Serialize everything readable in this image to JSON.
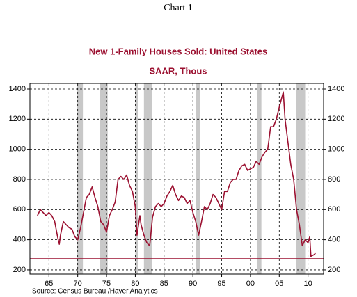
{
  "chart_data": {
    "type": "line",
    "caption": "Chart 1",
    "title": "New 1-Family Houses Sold: United States",
    "subtitle": "SAAR, Thous",
    "source": "Source:  Census Bureau /Haver Analytics",
    "xlim": [
      1961.7,
      2012.7
    ],
    "ylim": [
      172,
      1437
    ],
    "xticks": [
      {
        "value": 1965,
        "label": "65"
      },
      {
        "value": 1970,
        "label": "70"
      },
      {
        "value": 1975,
        "label": "75"
      },
      {
        "value": 1980,
        "label": "80"
      },
      {
        "value": 1985,
        "label": "85"
      },
      {
        "value": 1990,
        "label": "90"
      },
      {
        "value": 1995,
        "label": "95"
      },
      {
        "value": 2000,
        "label": "00"
      },
      {
        "value": 2005,
        "label": "05"
      },
      {
        "value": 2010,
        "label": "10"
      }
    ],
    "yticks": [
      200,
      400,
      600,
      800,
      1000,
      1200,
      1400
    ],
    "grid": true,
    "shaded_periods": [
      [
        1969.9,
        1970.9
      ],
      [
        1973.9,
        1975.2
      ],
      [
        1980.0,
        1980.5
      ],
      [
        1981.5,
        1982.9
      ],
      [
        1990.5,
        1991.2
      ],
      [
        2001.2,
        2001.9
      ],
      [
        2007.9,
        2009.5
      ]
    ],
    "reference_line": 275,
    "series": [
      {
        "name": "New 1-Family Houses Sold",
        "color": "#9b1030",
        "x": [
          1963.0,
          1963.5,
          1964.0,
          1964.5,
          1965.0,
          1965.5,
          1966.0,
          1966.5,
          1966.8,
          1967.0,
          1967.5,
          1968.0,
          1968.5,
          1969.0,
          1969.5,
          1970.0,
          1970.5,
          1971.0,
          1971.5,
          1972.0,
          1972.5,
          1973.0,
          1973.5,
          1974.0,
          1974.5,
          1975.0,
          1975.5,
          1976.0,
          1976.5,
          1977.0,
          1977.5,
          1978.0,
          1978.5,
          1979.0,
          1979.5,
          1980.0,
          1980.3,
          1980.8,
          1981.0,
          1981.5,
          1982.0,
          1982.5,
          1983.0,
          1983.5,
          1984.0,
          1984.5,
          1985.0,
          1985.5,
          1986.0,
          1986.5,
          1987.0,
          1987.5,
          1988.0,
          1988.5,
          1989.0,
          1989.5,
          1990.0,
          1990.5,
          1991.0,
          1991.5,
          1992.0,
          1992.5,
          1993.0,
          1993.5,
          1994.0,
          1994.5,
          1995.0,
          1995.5,
          1996.0,
          1996.5,
          1997.0,
          1997.5,
          1998.0,
          1998.5,
          1999.0,
          1999.5,
          2000.0,
          2000.5,
          2001.0,
          2001.5,
          2002.0,
          2002.5,
          2003.0,
          2003.5,
          2004.0,
          2004.5,
          2005.0,
          2005.5,
          2005.7,
          2006.0,
          2006.5,
          2007.0,
          2007.5,
          2008.0,
          2008.5,
          2009.0,
          2009.5,
          2010.0,
          2010.3,
          2010.5,
          2011.0,
          2011.3
        ],
        "values": [
          560,
          600,
          580,
          560,
          580,
          560,
          520,
          420,
          370,
          430,
          520,
          500,
          480,
          470,
          420,
          400,
          480,
          580,
          680,
          700,
          750,
          680,
          620,
          520,
          500,
          450,
          560,
          600,
          650,
          800,
          820,
          800,
          830,
          760,
          720,
          620,
          430,
          560,
          500,
          430,
          380,
          360,
          550,
          620,
          640,
          620,
          640,
          690,
          720,
          760,
          700,
          660,
          690,
          680,
          640,
          660,
          580,
          520,
          430,
          520,
          620,
          600,
          640,
          700,
          680,
          640,
          600,
          720,
          720,
          780,
          800,
          800,
          860,
          890,
          900,
          860,
          870,
          880,
          920,
          900,
          950,
          980,
          1000,
          1150,
          1150,
          1200,
          1280,
          1350,
          1380,
          1200,
          1050,
          900,
          800,
          600,
          500,
          360,
          400,
          380,
          420,
          290,
          300,
          310
        ]
      }
    ]
  }
}
